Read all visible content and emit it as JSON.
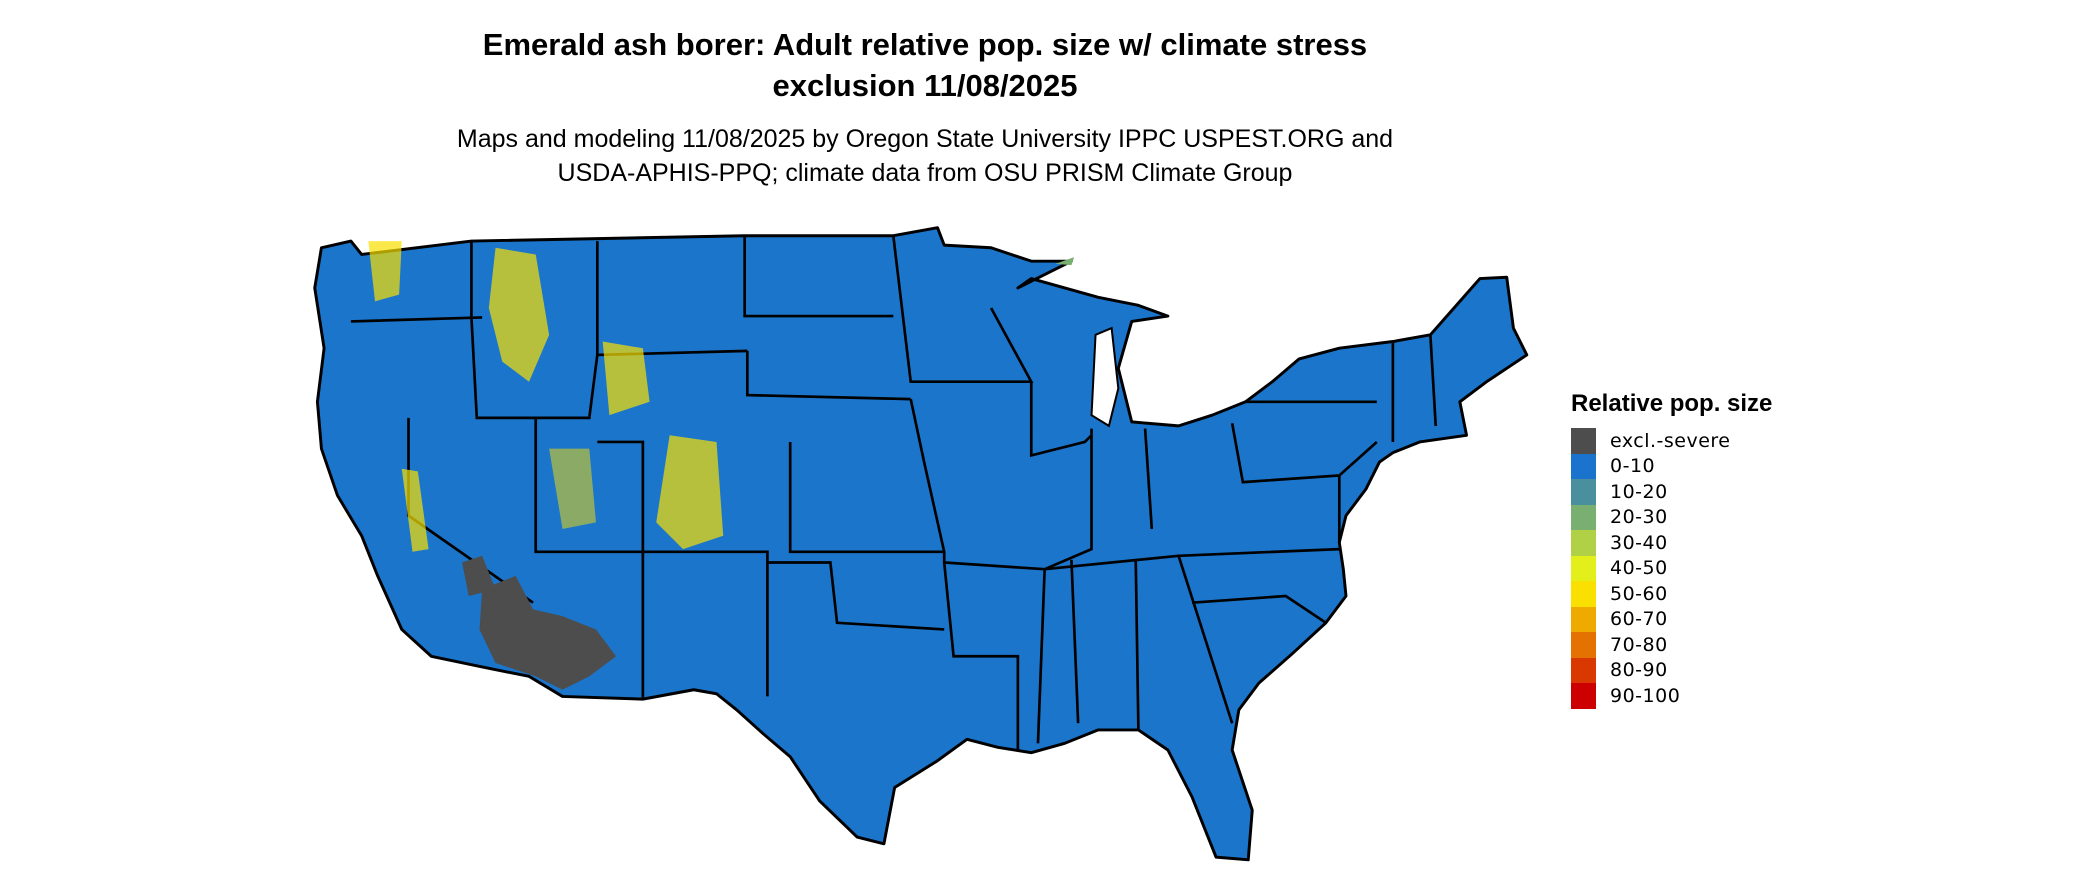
{
  "title": {
    "line1": "Emerald ash borer: Adult relative pop. size w/ climate stress",
    "line2": "exclusion 11/08/2025"
  },
  "subtitle": {
    "line1": "Maps and modeling 11/08/2025 by Oregon State University IPPC USPEST.ORG and",
    "line2": "USDA-APHIS-PPQ; climate data from OSU PRISM Climate Group"
  },
  "map": {
    "region": "Contiguous United States",
    "dominant_class": "0-10",
    "background_fill": "#1b75cb",
    "border_color": "#000000"
  },
  "legend": {
    "title": "Relative pop. size",
    "items": [
      {
        "label": "excl.-severe",
        "color": "#4d4d4d"
      },
      {
        "label": "0-10",
        "color": "#1a73cc"
      },
      {
        "label": "10-20",
        "color": "#4a8f9e"
      },
      {
        "label": "20-30",
        "color": "#7aaf72"
      },
      {
        "label": "30-40",
        "color": "#b0d045"
      },
      {
        "label": "40-50",
        "color": "#e2ef1a"
      },
      {
        "label": "50-60",
        "color": "#f9e000"
      },
      {
        "label": "60-70",
        "color": "#efaa00"
      },
      {
        "label": "70-80",
        "color": "#e37200"
      },
      {
        "label": "80-90",
        "color": "#d93800"
      },
      {
        "label": "90-100",
        "color": "#cc0000"
      }
    ]
  }
}
